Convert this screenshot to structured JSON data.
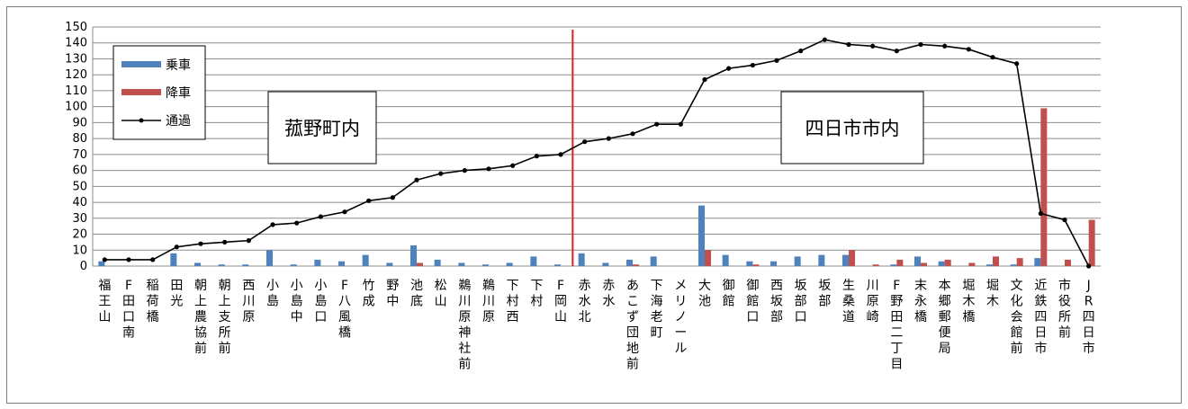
{
  "chart_data": {
    "type": "bar",
    "title": "",
    "xlabel": "",
    "ylabel": "",
    "ylim": [
      0,
      150
    ],
    "yticks": [
      "0",
      "10",
      "20",
      "30",
      "40",
      "50",
      "60",
      "70",
      "80",
      "90",
      "100",
      "110",
      "120",
      "130",
      "140",
      "150"
    ],
    "grid": true,
    "legend_position": "top-left",
    "categories": [
      "福王山",
      "F田口南",
      "稲荷橋",
      "田光",
      "朝上農協前",
      "朝上支所前",
      "西川原",
      "小島",
      "小島中",
      "小島口",
      "F八風橋",
      "竹成",
      "野中",
      "池底",
      "松山",
      "鵜川原神社前",
      "鵜川原",
      "下村西",
      "下村",
      "F岡山",
      "赤水北",
      "赤水",
      "あこず団地前",
      "下海老町",
      "メリノール",
      "大池",
      "御館",
      "御館口",
      "西坂部",
      "坂部口",
      "坂部",
      "生桑道",
      "川原崎",
      "F野田二丁目",
      "末永橋",
      "本郷郵便局",
      "堀木橋",
      "堀木",
      "文化会館前",
      "近鉄四日市",
      "市役所前",
      "JR四日市"
    ],
    "series": [
      {
        "name": "乗車",
        "type": "bar",
        "color": "#4f81bd",
        "values": [
          3,
          0,
          0,
          8,
          2,
          1,
          1,
          10,
          1,
          4,
          3,
          7,
          2,
          13,
          4,
          2,
          1,
          2,
          6,
          1,
          8,
          2,
          4,
          6,
          0,
          38,
          7,
          3,
          3,
          6,
          7,
          7,
          0,
          1,
          6,
          3,
          0,
          1,
          1,
          5,
          0,
          0
        ]
      },
      {
        "name": "降車",
        "type": "bar",
        "color": "#c0504d",
        "values": [
          0,
          0,
          0,
          0,
          0,
          0,
          0,
          0,
          0,
          0,
          0,
          0,
          0,
          2,
          0,
          0,
          0,
          0,
          0,
          0,
          0,
          0,
          1,
          0,
          0,
          10,
          0,
          1,
          0,
          0,
          0,
          10,
          1,
          4,
          2,
          4,
          2,
          6,
          5,
          99,
          4,
          29
        ]
      },
      {
        "name": "通過",
        "type": "line",
        "color": "#000000",
        "values": [
          4,
          4,
          4,
          12,
          14,
          15,
          16,
          26,
          27,
          31,
          34,
          41,
          43,
          54,
          58,
          60,
          61,
          63,
          69,
          70,
          78,
          80,
          83,
          89,
          89,
          117,
          124,
          126,
          129,
          135,
          142,
          139,
          138,
          135,
          139,
          138,
          136,
          131,
          127,
          33,
          29,
          0
        ]
      }
    ],
    "divider_after_category": "F岡山",
    "annotations": [
      "菰野町内",
      "四日市市内"
    ]
  }
}
